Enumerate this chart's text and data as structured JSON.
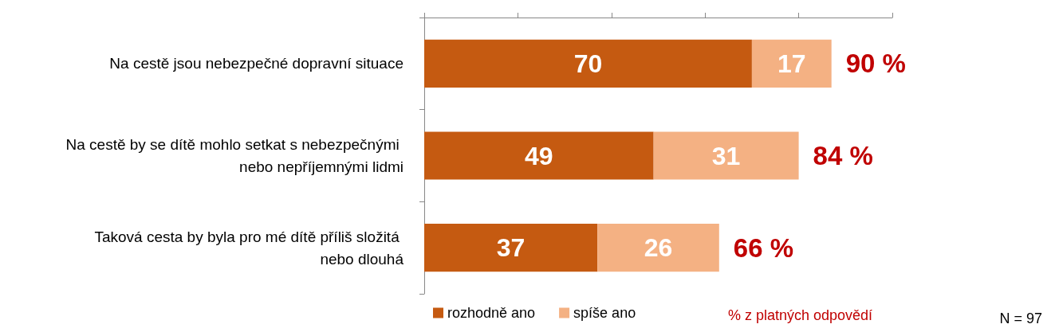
{
  "chart_data": {
    "type": "bar",
    "orientation": "horizontal",
    "stacked": true,
    "categories": [
      "Na cestě jsou nebezpečné dopravní situace",
      "Na cestě by se dítě mohlo setkat s nebezpečnými nebo nepříjemnými lidmi",
      "Taková cesta by byla pro mé dítě příliš složitá nebo dlouhá"
    ],
    "series": [
      {
        "name": "rozhodně ano",
        "color": "#c55a11",
        "values": [
          70,
          49,
          37
        ]
      },
      {
        "name": "spíše ano",
        "color": "#f4b183",
        "values": [
          17,
          31,
          26
        ]
      }
    ],
    "xlim": [
      0,
      100
    ],
    "xticks": [
      {
        "value": 0,
        "label": null
      },
      {
        "value": 20,
        "label": null
      },
      {
        "value": 40,
        "label": null
      },
      {
        "value": 60,
        "label": null
      },
      {
        "value": 80,
        "label": null
      },
      {
        "value": 100,
        "label": null
      }
    ],
    "tick_labels": "y",
    "data_labels": true,
    "grid": false,
    "legend": "bottom",
    "annotations": [
      {
        "text": "90 %",
        "x": 87,
        "y": "Na cestě jsou nebezpečné dopravní situace"
      },
      {
        "text": "84 %",
        "x": 80,
        "y": "Na cestě by se dítě mohlo setkat s nebezpečnými nebo nepříjemnými lidmi"
      },
      {
        "text": "66 %",
        "x": 63,
        "y": "Taková cesta by byla pro mé dítě příliš složitá nebo dlouhá"
      },
      "% z platných odpovědí",
      "N = 97"
    ]
  }
}
